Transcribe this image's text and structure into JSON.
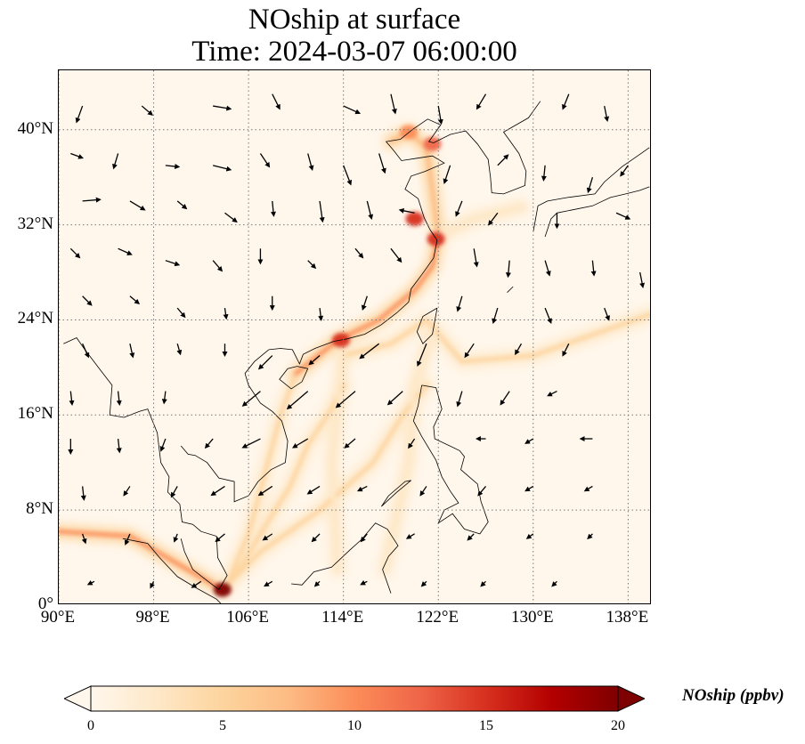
{
  "title": {
    "line1": "NOship at surface",
    "line2": "Time: 2024-03-07 06:00:00"
  },
  "map": {
    "lon_range": [
      90,
      140
    ],
    "lat_range": [
      0,
      45
    ],
    "lon_ticks": [
      {
        "value": 90,
        "label": "90°E"
      },
      {
        "value": 98,
        "label": "98°E"
      },
      {
        "value": 106,
        "label": "106°E"
      },
      {
        "value": 114,
        "label": "114°E"
      },
      {
        "value": 122,
        "label": "122°E"
      },
      {
        "value": 130,
        "label": "130°E"
      },
      {
        "value": 138,
        "label": "138°E"
      }
    ],
    "lat_ticks": [
      {
        "value": 0,
        "label": "0°"
      },
      {
        "value": 8,
        "label": "8°N"
      },
      {
        "value": 16,
        "label": "16°N"
      },
      {
        "value": 24,
        "label": "24°N"
      },
      {
        "value": 32,
        "label": "32°N"
      },
      {
        "value": 40,
        "label": "40°N"
      }
    ],
    "gridlines": true,
    "background_color": "#fff7ec",
    "colormap": "OrRd",
    "ship_lanes": [
      {
        "points": [
          [
            90,
            6.2
          ],
          [
            96,
            5.8
          ],
          [
            100,
            3.5
          ],
          [
            103.8,
            1.3
          ]
        ],
        "level": 9
      },
      {
        "points": [
          [
            103.8,
            1.3
          ],
          [
            105.5,
            3.5
          ],
          [
            107,
            6
          ],
          [
            109.5,
            10
          ],
          [
            111,
            13.5
          ],
          [
            113,
            16.5
          ],
          [
            114,
            18.5
          ]
        ],
        "level": 6
      },
      {
        "points": [
          [
            103.8,
            1.3
          ],
          [
            107,
            4.5
          ],
          [
            112,
            8
          ],
          [
            116.5,
            12
          ],
          [
            119,
            16
          ],
          [
            121,
            18.5
          ]
        ],
        "level": 6
      },
      {
        "points": [
          [
            104,
            1.3
          ],
          [
            106,
            6
          ],
          [
            107.5,
            11.5
          ],
          [
            108.7,
            16
          ],
          [
            110,
            19.5
          ]
        ],
        "level": 5
      },
      {
        "points": [
          [
            110,
            19.5
          ],
          [
            113.5,
            22.3
          ],
          [
            117,
            24
          ],
          [
            120,
            26.5
          ],
          [
            121.5,
            28.5
          ],
          [
            122,
            31
          ]
        ],
        "level": 10
      },
      {
        "points": [
          [
            114,
            21
          ],
          [
            118,
            22
          ],
          [
            121,
            24
          ],
          [
            124,
            20.5
          ],
          [
            130,
            21
          ],
          [
            140,
            24.5
          ]
        ],
        "level": 6
      },
      {
        "points": [
          [
            122,
            31
          ],
          [
            121.5,
            35
          ],
          [
            121,
            38.5
          ],
          [
            119.5,
            39.8
          ],
          [
            118,
            39
          ]
        ],
        "level": 8
      },
      {
        "points": [
          [
            122,
            31
          ],
          [
            125,
            32.5
          ],
          [
            129,
            33.5
          ]
        ],
        "level": 3
      },
      {
        "points": [
          [
            114,
            21.3
          ],
          [
            113,
            12
          ],
          [
            113.5,
            3
          ]
        ],
        "level": 3
      },
      {
        "points": [
          [
            121.5,
            23
          ],
          [
            120,
            18.5
          ],
          [
            119.5,
            12
          ],
          [
            117.5,
            3
          ]
        ],
        "level": 3
      }
    ],
    "hotspots": [
      {
        "lon": 103.8,
        "lat": 1.3,
        "level": 20
      },
      {
        "lon": 113.8,
        "lat": 22.3,
        "level": 16
      },
      {
        "lon": 121.8,
        "lat": 30.8,
        "level": 15
      },
      {
        "lon": 120.0,
        "lat": 32.5,
        "level": 14
      },
      {
        "lon": 121.5,
        "lat": 38.8,
        "level": 12
      },
      {
        "lon": 119.5,
        "lat": 39.8,
        "level": 10
      }
    ],
    "wind_vectors": [
      [
        92,
        42,
        -0.4,
        -1.1
      ],
      [
        97,
        42,
        0.7,
        -0.6
      ],
      [
        103,
        42,
        1.2,
        -0.2
      ],
      [
        108,
        43,
        0.5,
        -1
      ],
      [
        114,
        42,
        1.1,
        -0.5
      ],
      [
        118,
        43,
        0.3,
        -1.3
      ],
      [
        122,
        42,
        0.2,
        -1.2
      ],
      [
        126,
        43,
        -0.6,
        -1
      ],
      [
        133,
        43,
        -0.4,
        -1
      ],
      [
        136,
        42,
        0.2,
        -1
      ],
      [
        91,
        38,
        0.8,
        -0.3
      ],
      [
        95,
        38,
        -0.3,
        -1
      ],
      [
        99,
        37,
        0.9,
        -0.1
      ],
      [
        103,
        37,
        1.2,
        -0.3
      ],
      [
        107,
        38,
        0.6,
        -0.9
      ],
      [
        111,
        38,
        0.3,
        -1.1
      ],
      [
        114,
        37,
        0.5,
        -1.3
      ],
      [
        117,
        38,
        0.4,
        -1.3
      ],
      [
        123,
        37,
        -0.4,
        -1.2
      ],
      [
        127,
        37,
        0.7,
        0.7
      ],
      [
        131,
        37,
        -0.1,
        -1
      ],
      [
        135,
        36,
        -0.3,
        -1
      ],
      [
        138,
        37,
        -0.5,
        -0.7
      ],
      [
        92,
        34,
        1.2,
        0.1
      ],
      [
        96,
        34,
        1,
        -0.6
      ],
      [
        100,
        34,
        0.6,
        -0.5
      ],
      [
        104,
        33,
        0.8,
        -0.6
      ],
      [
        108,
        34,
        0.1,
        -1
      ],
      [
        112,
        34,
        0.2,
        -1.4
      ],
      [
        116,
        34,
        0.3,
        -1.2
      ],
      [
        120,
        33,
        -1,
        0.2
      ],
      [
        124,
        34,
        -0.4,
        -1
      ],
      [
        127,
        33,
        -0.6,
        -0.8
      ],
      [
        132,
        33,
        0,
        -1
      ],
      [
        137,
        33,
        0.9,
        -0.4
      ],
      [
        91,
        30,
        0.6,
        -0.6
      ],
      [
        95,
        30,
        0.9,
        -0.4
      ],
      [
        99,
        29,
        0.9,
        -0.3
      ],
      [
        103,
        29,
        0.6,
        -0.7
      ],
      [
        107,
        30,
        0,
        -1
      ],
      [
        111,
        29,
        0.5,
        -0.5
      ],
      [
        115,
        30,
        0.5,
        -0.6
      ],
      [
        118,
        30,
        0.7,
        -0.9
      ],
      [
        125,
        30,
        0.2,
        -1.2
      ],
      [
        128,
        29,
        -0.1,
        -1.1
      ],
      [
        131,
        29,
        0.3,
        -1
      ],
      [
        135,
        29,
        0.1,
        -1
      ],
      [
        139,
        28,
        0.2,
        -1
      ],
      [
        92,
        26,
        0.6,
        -0.6
      ],
      [
        96,
        26,
        0.6,
        -0.5
      ],
      [
        100,
        25,
        0.5,
        -0.6
      ],
      [
        104,
        25,
        0.1,
        -0.7
      ],
      [
        108,
        26,
        0,
        -0.9
      ],
      [
        112,
        25,
        0.1,
        -0.8
      ],
      [
        116,
        26,
        -0.3,
        -0.9
      ],
      [
        124,
        26,
        -0.3,
        -1
      ],
      [
        127,
        25,
        -0.3,
        -1
      ],
      [
        131,
        25,
        0.4,
        -1
      ],
      [
        136,
        25,
        0.3,
        -0.8
      ],
      [
        92,
        22,
        0.4,
        -0.9
      ],
      [
        96,
        22,
        0.2,
        -0.9
      ],
      [
        100,
        22,
        0.2,
        -0.7
      ],
      [
        104,
        22,
        0,
        -0.8
      ],
      [
        108,
        21,
        -0.9,
        -0.9
      ],
      [
        112,
        21,
        -0.7,
        -0.6
      ],
      [
        117,
        22,
        -1.3,
        -1
      ],
      [
        121,
        22,
        -0.6,
        -1.5
      ],
      [
        125,
        22,
        -0.6,
        -0.9
      ],
      [
        129,
        22,
        -0.4,
        -0.7
      ],
      [
        133,
        22,
        -0.4,
        -0.8
      ],
      [
        91,
        18,
        0.1,
        -0.9
      ],
      [
        95,
        18,
        0.1,
        -0.9
      ],
      [
        99,
        18,
        -0.1,
        -0.8
      ],
      [
        107,
        18,
        -1.2,
        -1
      ],
      [
        111,
        18,
        -1.4,
        -1.2
      ],
      [
        115,
        18,
        -1.3,
        -1.1
      ],
      [
        119,
        18,
        -1,
        -0.9
      ],
      [
        124,
        18,
        -0.3,
        -1
      ],
      [
        128,
        18,
        -0.6,
        -0.9
      ],
      [
        132,
        18,
        -0.6,
        -0.3
      ],
      [
        91,
        14,
        0,
        -1
      ],
      [
        95,
        14,
        0.1,
        -0.9
      ],
      [
        99,
        14,
        -0.3,
        -0.8
      ],
      [
        103,
        14,
        -0.5,
        -0.6
      ],
      [
        107,
        14,
        -1.2,
        -0.6
      ],
      [
        111,
        14,
        -1,
        -0.6
      ],
      [
        115,
        14,
        -0.7,
        -0.6
      ],
      [
        120,
        14,
        -0.4,
        -0.6
      ],
      [
        126,
        14,
        -0.6,
        0
      ],
      [
        130,
        14,
        -0.5,
        -0.3
      ],
      [
        135,
        14,
        -0.8,
        0
      ],
      [
        92,
        10,
        0.1,
        -0.9
      ],
      [
        96,
        10,
        -0.4,
        -0.6
      ],
      [
        100,
        10,
        -0.4,
        -0.7
      ],
      [
        104,
        10,
        -0.9,
        -0.6
      ],
      [
        108,
        10,
        -0.9,
        -0.6
      ],
      [
        112,
        10,
        -0.8,
        -0.5
      ],
      [
        116,
        10,
        -0.6,
        -0.3
      ],
      [
        121,
        10,
        -0.4,
        -0.6
      ],
      [
        126,
        10,
        -0.5,
        -0.6
      ],
      [
        130,
        10,
        -0.5,
        -0.3
      ],
      [
        135,
        10,
        -0.5,
        -0.3
      ],
      [
        92,
        6,
        0.2,
        -0.6
      ],
      [
        96,
        6,
        -0.3,
        -0.7
      ],
      [
        100,
        6,
        -0.2,
        -0.5
      ],
      [
        104,
        6,
        -0.6,
        -0.5
      ],
      [
        108,
        6,
        -0.6,
        -0.4
      ],
      [
        112,
        6,
        -0.5,
        -0.5
      ],
      [
        116,
        6,
        -0.4,
        -0.5
      ],
      [
        120,
        6,
        -0.5,
        -0.3
      ],
      [
        125,
        6,
        -0.4,
        -0.4
      ],
      [
        130,
        6,
        -0.4,
        -0.3
      ],
      [
        135,
        6,
        -0.3,
        -0.3
      ],
      [
        93,
        2,
        -0.4,
        -0.2
      ],
      [
        98,
        2,
        -0.2,
        -0.4
      ],
      [
        102,
        2,
        -0.6,
        -0.4
      ],
      [
        108,
        2,
        -0.5,
        -0.3
      ],
      [
        112,
        2,
        -0.3,
        -0.3
      ],
      [
        116,
        2,
        -0.4,
        -0.2
      ],
      [
        121,
        2,
        -0.3,
        -0.3
      ],
      [
        126,
        2,
        -0.3,
        -0.3
      ],
      [
        132,
        2,
        -0.3,
        -0.3
      ]
    ]
  },
  "colorbar": {
    "label": "NOship (ppbv)",
    "min": 0,
    "max": 20,
    "extend": "both",
    "ticks": [
      {
        "value": 0,
        "label": "0"
      },
      {
        "value": 5,
        "label": "5"
      },
      {
        "value": 10,
        "label": "10"
      },
      {
        "value": 15,
        "label": "15"
      },
      {
        "value": 20,
        "label": "20"
      }
    ],
    "colors": [
      "#fff7ec",
      "#fee8c8",
      "#fdd49e",
      "#fdbb84",
      "#fc8d59",
      "#ef6548",
      "#d7301f",
      "#b30000",
      "#7f0000"
    ]
  }
}
